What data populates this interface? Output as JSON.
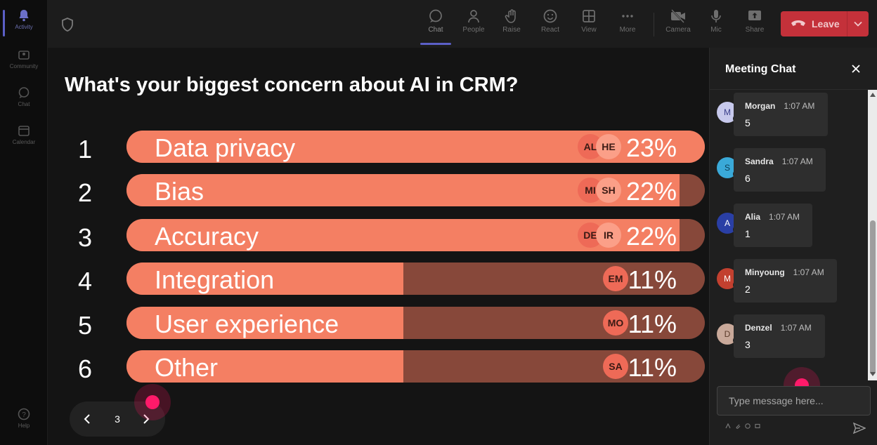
{
  "rail": {
    "items": [
      {
        "label": "Activity",
        "icon": "bell-icon",
        "active": true
      },
      {
        "label": "Community",
        "icon": "community-icon"
      },
      {
        "label": "Chat",
        "icon": "chat-icon"
      },
      {
        "label": "Calendar",
        "icon": "calendar-icon"
      }
    ],
    "help": "Help"
  },
  "toolbar": {
    "tools": [
      {
        "label": "Chat",
        "icon": "chat-bubble-icon",
        "active": true
      },
      {
        "label": "People",
        "icon": "people-icon"
      },
      {
        "label": "Raise",
        "icon": "raise-hand-icon"
      },
      {
        "label": "React",
        "icon": "react-smiley-icon"
      },
      {
        "label": "View",
        "icon": "view-grid-icon"
      },
      {
        "label": "More",
        "icon": "more-dots-icon"
      },
      {
        "label": "Camera",
        "icon": "camera-off-icon"
      },
      {
        "label": "Mic",
        "icon": "mic-icon"
      },
      {
        "label": "Share",
        "icon": "share-icon"
      }
    ],
    "leave_label": "Leave"
  },
  "poll": {
    "question": "What's your biggest concern about AI in CRM?",
    "accent_fill": "#f47f63",
    "accent_track": "#87483a",
    "options": [
      {
        "rank": "1",
        "label": "Data privacy",
        "percent": "23%",
        "share": 23,
        "voters": [
          "AL",
          "HE"
        ]
      },
      {
        "rank": "2",
        "label": "Bias",
        "percent": "22%",
        "share": 22,
        "voters": [
          "MI",
          "SH"
        ]
      },
      {
        "rank": "3",
        "label": "Accuracy",
        "percent": "22%",
        "share": 22,
        "voters": [
          "DE",
          "IR"
        ]
      },
      {
        "rank": "4",
        "label": "Integration",
        "percent": "11%",
        "share": 11,
        "voters": [
          "EM"
        ]
      },
      {
        "rank": "5",
        "label": "User experience",
        "percent": "11%",
        "share": 11,
        "voters": [
          "MO"
        ]
      },
      {
        "rank": "6",
        "label": "Other",
        "percent": "11%",
        "share": 11,
        "voters": [
          "SA"
        ]
      }
    ]
  },
  "pager": {
    "page": "3"
  },
  "chat": {
    "title": "Meeting Chat",
    "messages": [
      {
        "initial": "M",
        "name": "Morgan",
        "time": "1:07 AM",
        "text": "5",
        "avatar_bg": "#c7c9ec",
        "avatar_fg": "#3a3f8a"
      },
      {
        "initial": "S",
        "name": "Sandra",
        "time": "1:07 AM",
        "text": "6",
        "avatar_bg": "#3aa9d8",
        "avatar_fg": "#0b3a52"
      },
      {
        "initial": "A",
        "name": "Alia",
        "time": "1:07 AM",
        "text": "1",
        "avatar_bg": "#2a3fa5",
        "avatar_fg": "#ffffff"
      },
      {
        "initial": "M",
        "name": "Minyoung",
        "time": "1:07 AM",
        "text": "2",
        "avatar_bg": "#c2402f",
        "avatar_fg": "#ffffff"
      },
      {
        "initial": "D",
        "name": "Denzel",
        "time": "1:07 AM",
        "text": "3",
        "avatar_bg": "#c9a99a",
        "avatar_fg": "#5a3a2a"
      }
    ],
    "input_placeholder": "Type message here..."
  }
}
